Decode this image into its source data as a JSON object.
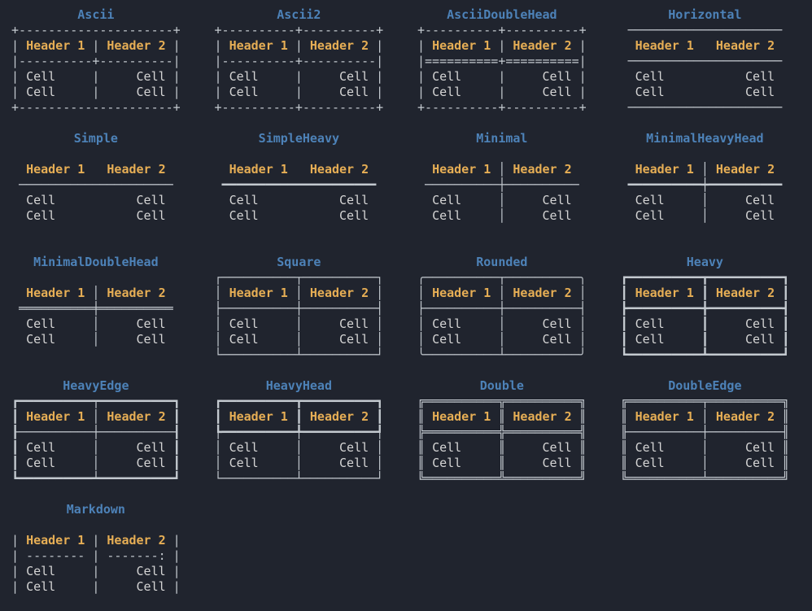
{
  "colors": {
    "background": "#20242e",
    "title": "#4d82b8",
    "header": "#e6ae55",
    "cell": "#d5d5d5",
    "border": "#c3c9cf"
  },
  "table_headers": [
    "Header 1",
    "Header 2"
  ],
  "table_cells": [
    "Cell",
    "Cell",
    "Cell",
    "Cell"
  ],
  "tables": [
    {
      "title": "Ascii",
      "lines": [
        "+---------------------+",
        "| Header 1 | Header 2 |",
        "|----------+----------|",
        "| Cell     |     Cell |",
        "| Cell     |     Cell |",
        "+---------------------+"
      ]
    },
    {
      "title": "Ascii2",
      "lines": [
        "+----------+----------+",
        "| Header 1 | Header 2 |",
        "|----------+----------|",
        "| Cell     |     Cell |",
        "| Cell     |     Cell |",
        "+----------+----------+"
      ]
    },
    {
      "title": "AsciiDoubleHead",
      "lines": [
        "+----------+----------+",
        "| Header 1 | Header 2 |",
        "|==========+==========|",
        "| Cell     |     Cell |",
        "| Cell     |     Cell |",
        "+----------+----------+"
      ]
    },
    {
      "title": "Horizontal",
      "lines": [
        " ───────────────────── ",
        "  Header 1   Header 2  ",
        " ───────────────────── ",
        "  Cell           Cell  ",
        "  Cell           Cell  ",
        " ───────────────────── "
      ]
    },
    {
      "title": "Simple",
      "lines": [
        "",
        "  Header 1   Header 2  ",
        " ───────────────────── ",
        "  Cell           Cell  ",
        "  Cell           Cell  ",
        ""
      ]
    },
    {
      "title": "SimpleHeavy",
      "lines": [
        "",
        "  Header 1   Header 2  ",
        " ━━━━━━━━━━━━━━━━━━━━━ ",
        "  Cell           Cell  ",
        "  Cell           Cell  ",
        ""
      ]
    },
    {
      "title": "Minimal",
      "lines": [
        "",
        "  Header 1 │ Header 2  ",
        " ──────────┼────────── ",
        "  Cell     │     Cell  ",
        "  Cell     │     Cell  ",
        ""
      ]
    },
    {
      "title": "MinimalHeavyHead",
      "lines": [
        "",
        "  Header 1 │ Header 2  ",
        " ━━━━━━━━━━┿━━━━━━━━━━ ",
        "  Cell     │     Cell  ",
        "  Cell     │     Cell  ",
        ""
      ]
    },
    {
      "title": "MinimalDoubleHead",
      "lines": [
        "",
        "  Header 1 │ Header 2  ",
        " ══════════╪══════════ ",
        "  Cell     │     Cell  ",
        "  Cell     │     Cell  ",
        ""
      ]
    },
    {
      "title": "Square",
      "lines": [
        "┌──────────┬──────────┐",
        "│ Header 1 │ Header 2 │",
        "├──────────┼──────────┤",
        "│ Cell     │     Cell │",
        "│ Cell     │     Cell │",
        "└──────────┴──────────┘"
      ]
    },
    {
      "title": "Rounded",
      "lines": [
        "╭──────────┬──────────╮",
        "│ Header 1 │ Header 2 │",
        "├──────────┼──────────┤",
        "│ Cell     │     Cell │",
        "│ Cell     │     Cell │",
        "╰──────────┴──────────╯"
      ]
    },
    {
      "title": "Heavy",
      "lines": [
        "┏━━━━━━━━━━┳━━━━━━━━━━┓",
        "┃ Header 1 ┃ Header 2 ┃",
        "┣━━━━━━━━━━╋━━━━━━━━━━┫",
        "┃ Cell     ┃     Cell ┃",
        "┃ Cell     ┃     Cell ┃",
        "┗━━━━━━━━━━┻━━━━━━━━━━┛"
      ]
    },
    {
      "title": "HeavyEdge",
      "lines": [
        "┏━━━━━━━━━━┯━━━━━━━━━━┓",
        "┃ Header 1 │ Header 2 ┃",
        "┠──────────┼──────────┨",
        "┃ Cell     │     Cell ┃",
        "┃ Cell     │     Cell ┃",
        "┗━━━━━━━━━━┷━━━━━━━━━━┛"
      ]
    },
    {
      "title": "HeavyHead",
      "lines": [
        "┏━━━━━━━━━━┳━━━━━━━━━━┓",
        "┃ Header 1 ┃ Header 2 ┃",
        "┡━━━━━━━━━━╇━━━━━━━━━━┩",
        "│ Cell     │     Cell │",
        "│ Cell     │     Cell │",
        "└──────────┴──────────┘"
      ]
    },
    {
      "title": "Double",
      "lines": [
        "╔══════════╦══════════╗",
        "║ Header 1 ║ Header 2 ║",
        "╠══════════╬══════════╣",
        "║ Cell     ║     Cell ║",
        "║ Cell     ║     Cell ║",
        "╚══════════╩══════════╝"
      ]
    },
    {
      "title": "DoubleEdge",
      "lines": [
        "╔══════════╤══════════╗",
        "║ Header 1 │ Header 2 ║",
        "╟──────────┼──────────╢",
        "║ Cell     │     Cell ║",
        "║ Cell     │     Cell ║",
        "╚══════════╧══════════╝"
      ]
    },
    {
      "title": "Markdown",
      "lines": [
        "",
        "| Header 1 | Header 2 |",
        "| -------- | -------: |",
        "| Cell     |     Cell |",
        "| Cell     |     Cell |",
        ""
      ]
    }
  ]
}
